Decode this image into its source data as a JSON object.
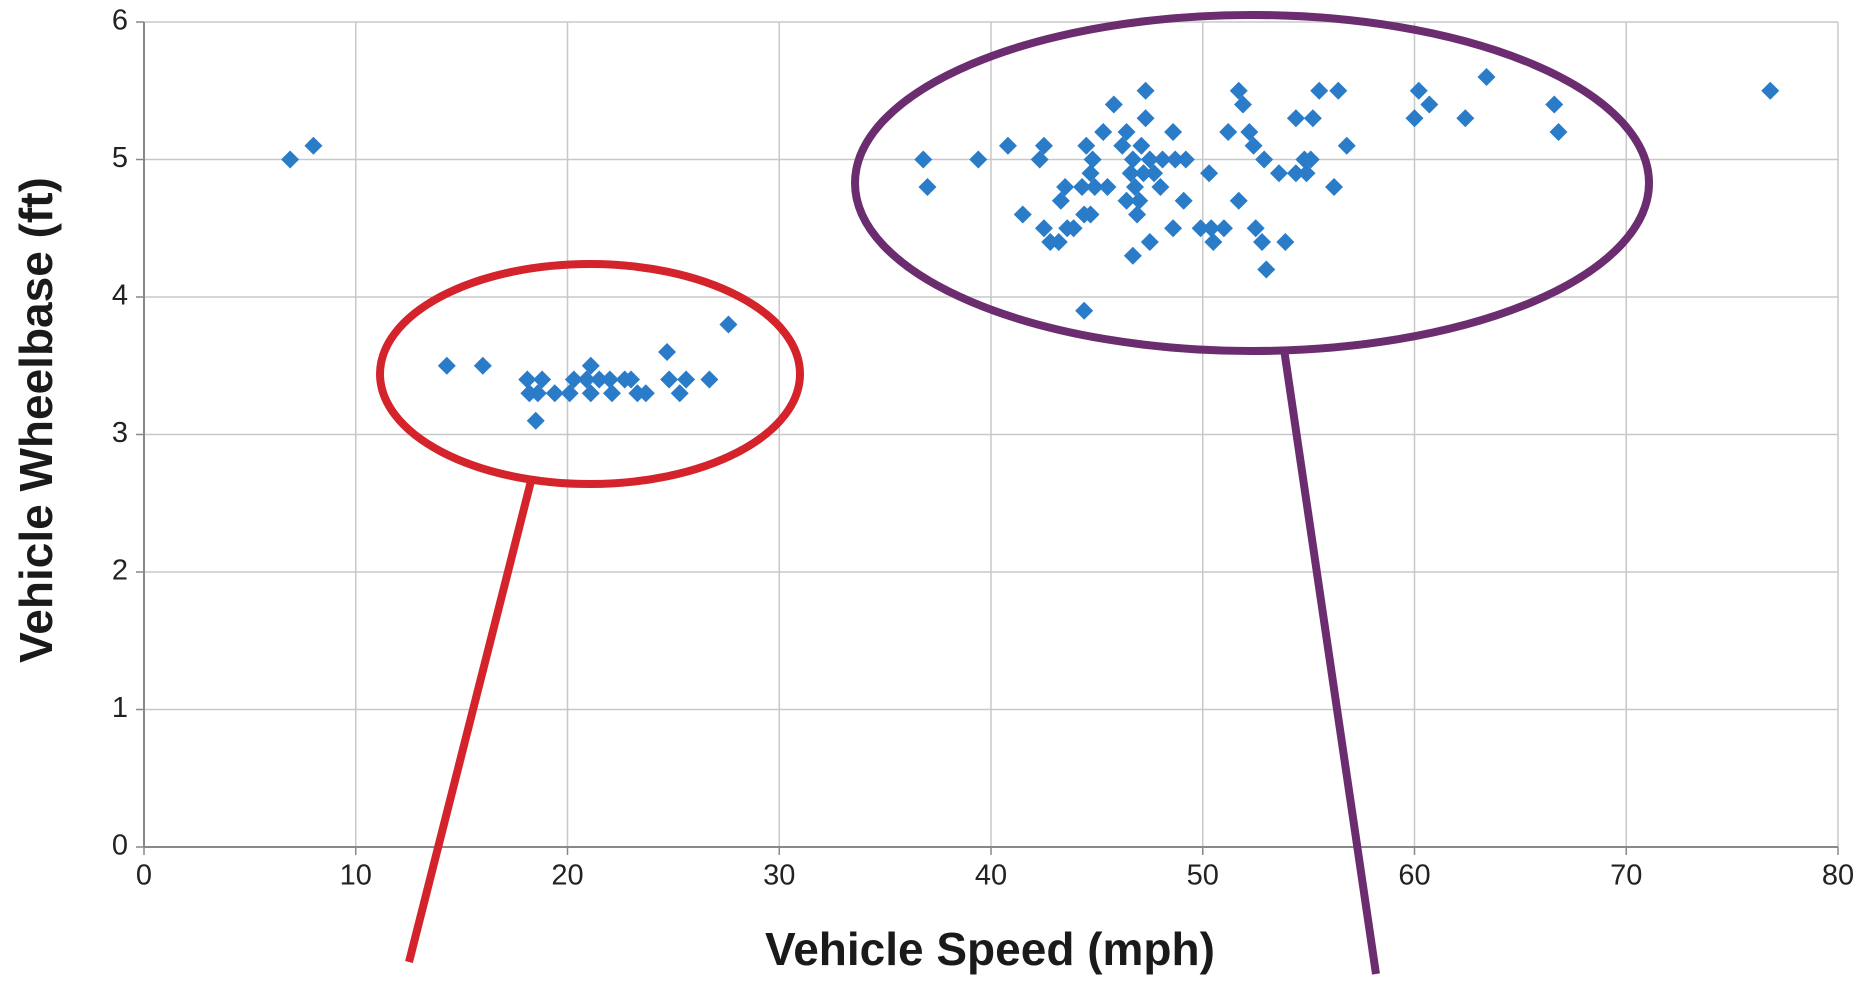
{
  "chart_data": {
    "type": "scatter",
    "x_label": "Vehicle Speed (mph)",
    "y_label": "Vehicle Wheelbase (ft)",
    "color": "#2a7bc8",
    "grid": true,
    "xlim": [
      0,
      80
    ],
    "xticks": [
      0,
      10,
      20,
      30,
      40,
      50,
      60,
      70,
      80
    ],
    "ylim": [
      0,
      6
    ],
    "yticks": [
      0,
      1,
      2,
      3,
      4,
      5,
      6
    ],
    "x": [
      6.9,
      8.0,
      14.3,
      16.0,
      18.1,
      18.2,
      18.5,
      18.8,
      18.6,
      19.4,
      20.1,
      20.3,
      20.9,
      21.1,
      21.1,
      21.5,
      22.0,
      22.1,
      22.7,
      23.0,
      23.3,
      23.7,
      24.7,
      24.8,
      25.3,
      25.6,
      26.7,
      27.6,
      36.8,
      37.0,
      39.4,
      40.8,
      41.5,
      42.3,
      42.5,
      42.5,
      42.8,
      43.2,
      43.3,
      43.5,
      43.6,
      43.9,
      44.3,
      44.4,
      44.4,
      44.5,
      44.7,
      44.7,
      44.8,
      44.9,
      45.3,
      45.5,
      45.8,
      46.2,
      46.4,
      46.4,
      46.6,
      46.7,
      46.7,
      46.8,
      46.9,
      47.0,
      47.1,
      47.2,
      47.3,
      47.3,
      47.5,
      47.5,
      47.7,
      48.0,
      48.1,
      48.6,
      48.6,
      48.7,
      49.1,
      49.2,
      49.9,
      50.3,
      50.4,
      50.5,
      51.0,
      51.2,
      51.7,
      51.7,
      51.9,
      52.2,
      52.4,
      52.5,
      52.8,
      52.9,
      53.0,
      53.6,
      53.9,
      54.4,
      54.4,
      54.8,
      54.9,
      55.1,
      55.2,
      55.5,
      56.2,
      56.4,
      56.8,
      60.0,
      60.2,
      60.7,
      62.4,
      63.4,
      66.6,
      66.8,
      76.8
    ],
    "values": [
      5.0,
      5.1,
      3.5,
      3.5,
      3.4,
      3.3,
      3.1,
      3.4,
      3.3,
      3.3,
      3.3,
      3.4,
      3.4,
      3.5,
      3.3,
      3.4,
      3.4,
      3.3,
      3.4,
      3.4,
      3.3,
      3.3,
      3.6,
      3.4,
      3.3,
      3.4,
      3.4,
      3.8,
      5.0,
      4.8,
      5.0,
      5.1,
      4.6,
      5.0,
      5.1,
      4.5,
      4.4,
      4.4,
      4.7,
      4.8,
      4.5,
      4.5,
      4.8,
      3.9,
      4.6,
      5.1,
      4.9,
      4.6,
      5.0,
      4.8,
      5.2,
      4.8,
      5.4,
      5.1,
      5.2,
      4.7,
      4.9,
      4.3,
      5.0,
      4.8,
      4.6,
      4.7,
      5.1,
      4.9,
      5.5,
      5.3,
      5.0,
      4.4,
      4.9,
      4.8,
      5.0,
      5.2,
      4.5,
      5.0,
      4.7,
      5.0,
      4.5,
      4.9,
      4.5,
      4.4,
      4.5,
      5.2,
      5.5,
      4.7,
      5.4,
      5.2,
      5.1,
      4.5,
      4.4,
      5.0,
      4.2,
      4.9,
      4.4,
      5.3,
      4.9,
      5.0,
      4.9,
      5.0,
      5.3,
      5.5,
      4.8,
      5.5,
      5.1,
      5.3,
      5.5,
      5.4,
      5.3,
      5.6,
      5.4,
      5.2,
      5.5
    ]
  }
}
